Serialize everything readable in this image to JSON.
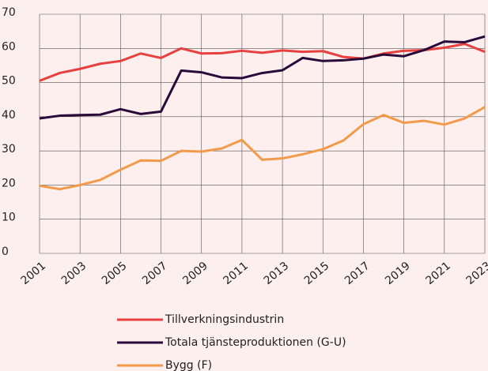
{
  "chart_data": {
    "type": "line",
    "x": [
      2001,
      2002,
      2003,
      2004,
      2005,
      2006,
      2007,
      2008,
      2009,
      2010,
      2011,
      2012,
      2013,
      2014,
      2015,
      2016,
      2017,
      2018,
      2019,
      2020,
      2021,
      2022,
      2023
    ],
    "series": [
      {
        "name": "Tillverkningsindustrin",
        "color": "#e8403f",
        "values": [
          50.5,
          52.8,
          54,
          55.5,
          56.3,
          58.5,
          57.2,
          60,
          58.5,
          58.6,
          59.3,
          58.7,
          59.4,
          59,
          59.2,
          57.5,
          57,
          58.5,
          59.3,
          59.5,
          60.2,
          61.3,
          59
        ]
      },
      {
        "name": "Totala tjänsteproduktionen (G-U)",
        "color": "#2a0a3a",
        "values": [
          39.5,
          40.3,
          40.5,
          40.6,
          42.2,
          40.8,
          41.5,
          53.5,
          53,
          51.5,
          51.3,
          52.8,
          53.6,
          57.2,
          56.3,
          56.5,
          57,
          58.2,
          57.7,
          59.5,
          62,
          61.8,
          63.5
        ]
      },
      {
        "name": "Bygg (F)",
        "color": "#f39a4a",
        "values": [
          19.8,
          18.8,
          20,
          21.5,
          24.5,
          27.2,
          27.1,
          30,
          29.8,
          30.7,
          33.2,
          27.4,
          27.8,
          29,
          30.5,
          33,
          37.8,
          40.5,
          38.2,
          38.8,
          37.7,
          39.5,
          42.8
        ]
      }
    ],
    "xlim": [
      2001,
      2023
    ],
    "xticks": [
      2001,
      2003,
      2005,
      2007,
      2009,
      2011,
      2013,
      2015,
      2017,
      2019,
      2021,
      2023
    ],
    "ylim": [
      0,
      70
    ],
    "yticks": [
      0,
      10,
      20,
      30,
      40,
      50,
      60,
      70
    ],
    "grid": true,
    "legend": "bottom"
  }
}
